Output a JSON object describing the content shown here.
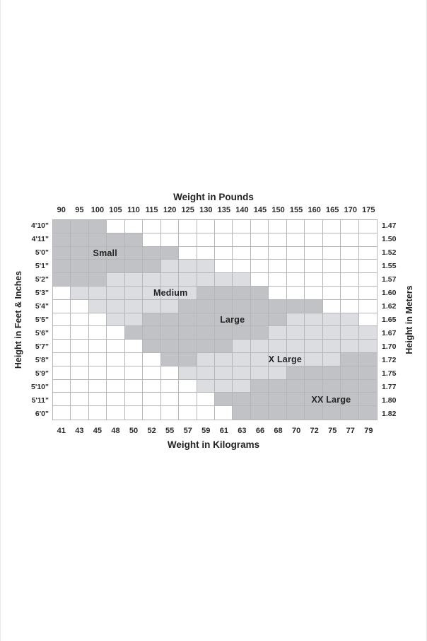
{
  "axes": {
    "top_title": "Weight in Pounds",
    "bottom_title": "Weight in Kilograms",
    "left_title": "Height in Feet & Inches",
    "right_title": "Height in Meters"
  },
  "colors": {
    "cell_dark": "#c0c2c5",
    "cell_light": "#dcdde0",
    "cell_white": "#ffffff",
    "grid_line": "#b4b6b9",
    "text": "#262626"
  },
  "chart_data": {
    "type": "heatmap",
    "title": "Weight in Pounds",
    "xlabel_top": "Weight in Pounds",
    "xlabel_bottom": "Weight in Kilograms",
    "ylabel_left": "Height in Feet & Inches",
    "ylabel_right": "Height in Meters",
    "columns_pounds": [
      90,
      95,
      100,
      105,
      110,
      115,
      120,
      125,
      130,
      135,
      140,
      145,
      150,
      155,
      160,
      165,
      170,
      175
    ],
    "columns_kilograms": [
      41,
      43,
      45,
      48,
      50,
      52,
      55,
      57,
      59,
      61,
      63,
      66,
      68,
      70,
      72,
      75,
      77,
      79
    ],
    "rows_height_ft": [
      "4'10\"",
      "4'11\"",
      "5'0\"",
      "5'1\"",
      "5'2\"",
      "5'3\"",
      "5'4\"",
      "5'5\"",
      "5'6\"",
      "5'7\"",
      "5'8\"",
      "5'9\"",
      "5'10\"",
      "5'11\"",
      "6'0\""
    ],
    "rows_height_m": [
      "1.47",
      "1.50",
      "1.52",
      "1.55",
      "1.57",
      "1.60",
      "1.62",
      "1.65",
      "1.67",
      "1.70",
      "1.72",
      "1.75",
      "1.77",
      "1.80",
      "1.82"
    ],
    "shade_legend": {
      "W": "white (out of range)",
      "L": "light gray",
      "D": "medium gray"
    },
    "cell_shades": [
      "DDDWWWWWWWWWWWWWWW",
      "DDDDDWWWWWWWWWWWWW",
      "DDDDDDDWWWWWWWWWWW",
      "DDDDDDLLLWWWWWWWWW",
      "DDDLLLLLLLLWWWWWWW",
      "WLLLLLLLDDDDWWWWWW",
      "WWLLLLLDDDDDDDDWWW",
      "WWWLLDDDDDDDDLLLLW",
      "WWWWDDDDDDDDLLLLLL",
      "WWWWWDDDDDLLLLLLLL",
      "WWWWWWDDLLLLLLLLDD",
      "WWWWWWWLLLLLLDDDDD",
      "WWWWWWWWLLLDDDDDDD",
      "WWWWWWWWWDDDDDDDDD",
      "WWWWWWWWWWDDDDDDDD"
    ],
    "size_regions": [
      {
        "label": "Small",
        "row_index": 2,
        "x_pct": 16.1
      },
      {
        "label": "Medium",
        "row_index": 5,
        "x_pct": 36.3
      },
      {
        "label": "Large",
        "row_index": 7,
        "x_pct": 55.4
      },
      {
        "label": "X Large",
        "row_index": 10,
        "x_pct": 71.7
      },
      {
        "label": "XX Large",
        "row_index": 13,
        "x_pct": 85.9
      }
    ]
  }
}
